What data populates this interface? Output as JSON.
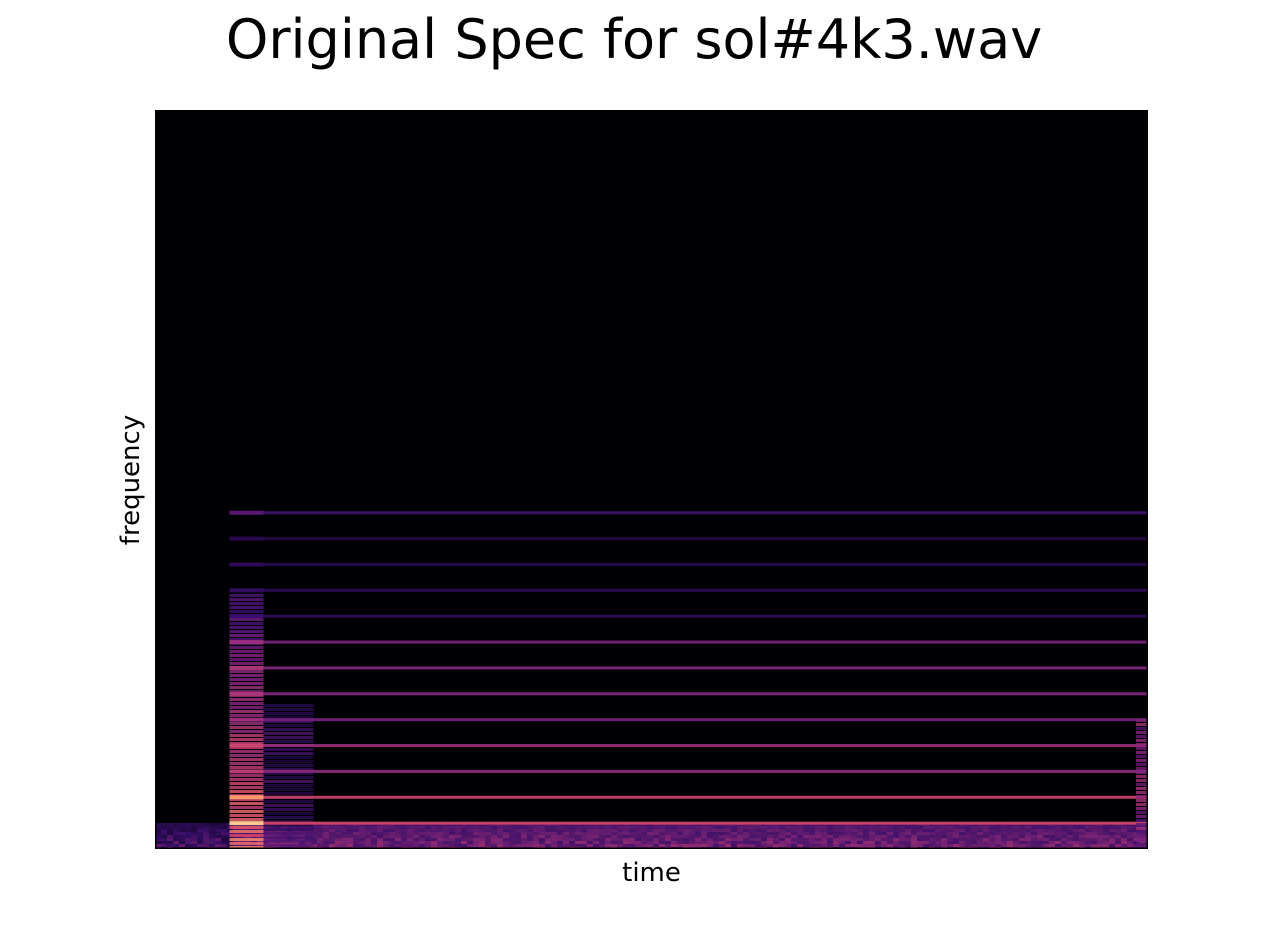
{
  "chart_data": {
    "type": "heatmap",
    "title": "Original Spec for sol#4k3.wav",
    "xlabel": "time",
    "ylabel": "frequency",
    "colormap": "magma",
    "background_color": "#000004",
    "x_ticks": [],
    "y_ticks": [],
    "grid": false,
    "legend": "none",
    "onset_time_fraction": 0.075,
    "fundamental_fraction": 0.035,
    "harmonics": [
      {
        "harmonic": 1,
        "relative_intensity": 0.85
      },
      {
        "harmonic": 2,
        "relative_intensity": 0.8
      },
      {
        "harmonic": 3,
        "relative_intensity": 0.55
      },
      {
        "harmonic": 4,
        "relative_intensity": 0.6
      },
      {
        "harmonic": 5,
        "relative_intensity": 0.45
      },
      {
        "harmonic": 6,
        "relative_intensity": 0.5
      },
      {
        "harmonic": 7,
        "relative_intensity": 0.5
      },
      {
        "harmonic": 8,
        "relative_intensity": 0.45
      },
      {
        "harmonic": 9,
        "relative_intensity": 0.15
      },
      {
        "harmonic": 10,
        "relative_intensity": 0.12
      },
      {
        "harmonic": 11,
        "relative_intensity": 0.1
      },
      {
        "harmonic": 12,
        "relative_intensity": 0.08
      },
      {
        "harmonic": 13,
        "relative_intensity": 0.25
      }
    ]
  }
}
